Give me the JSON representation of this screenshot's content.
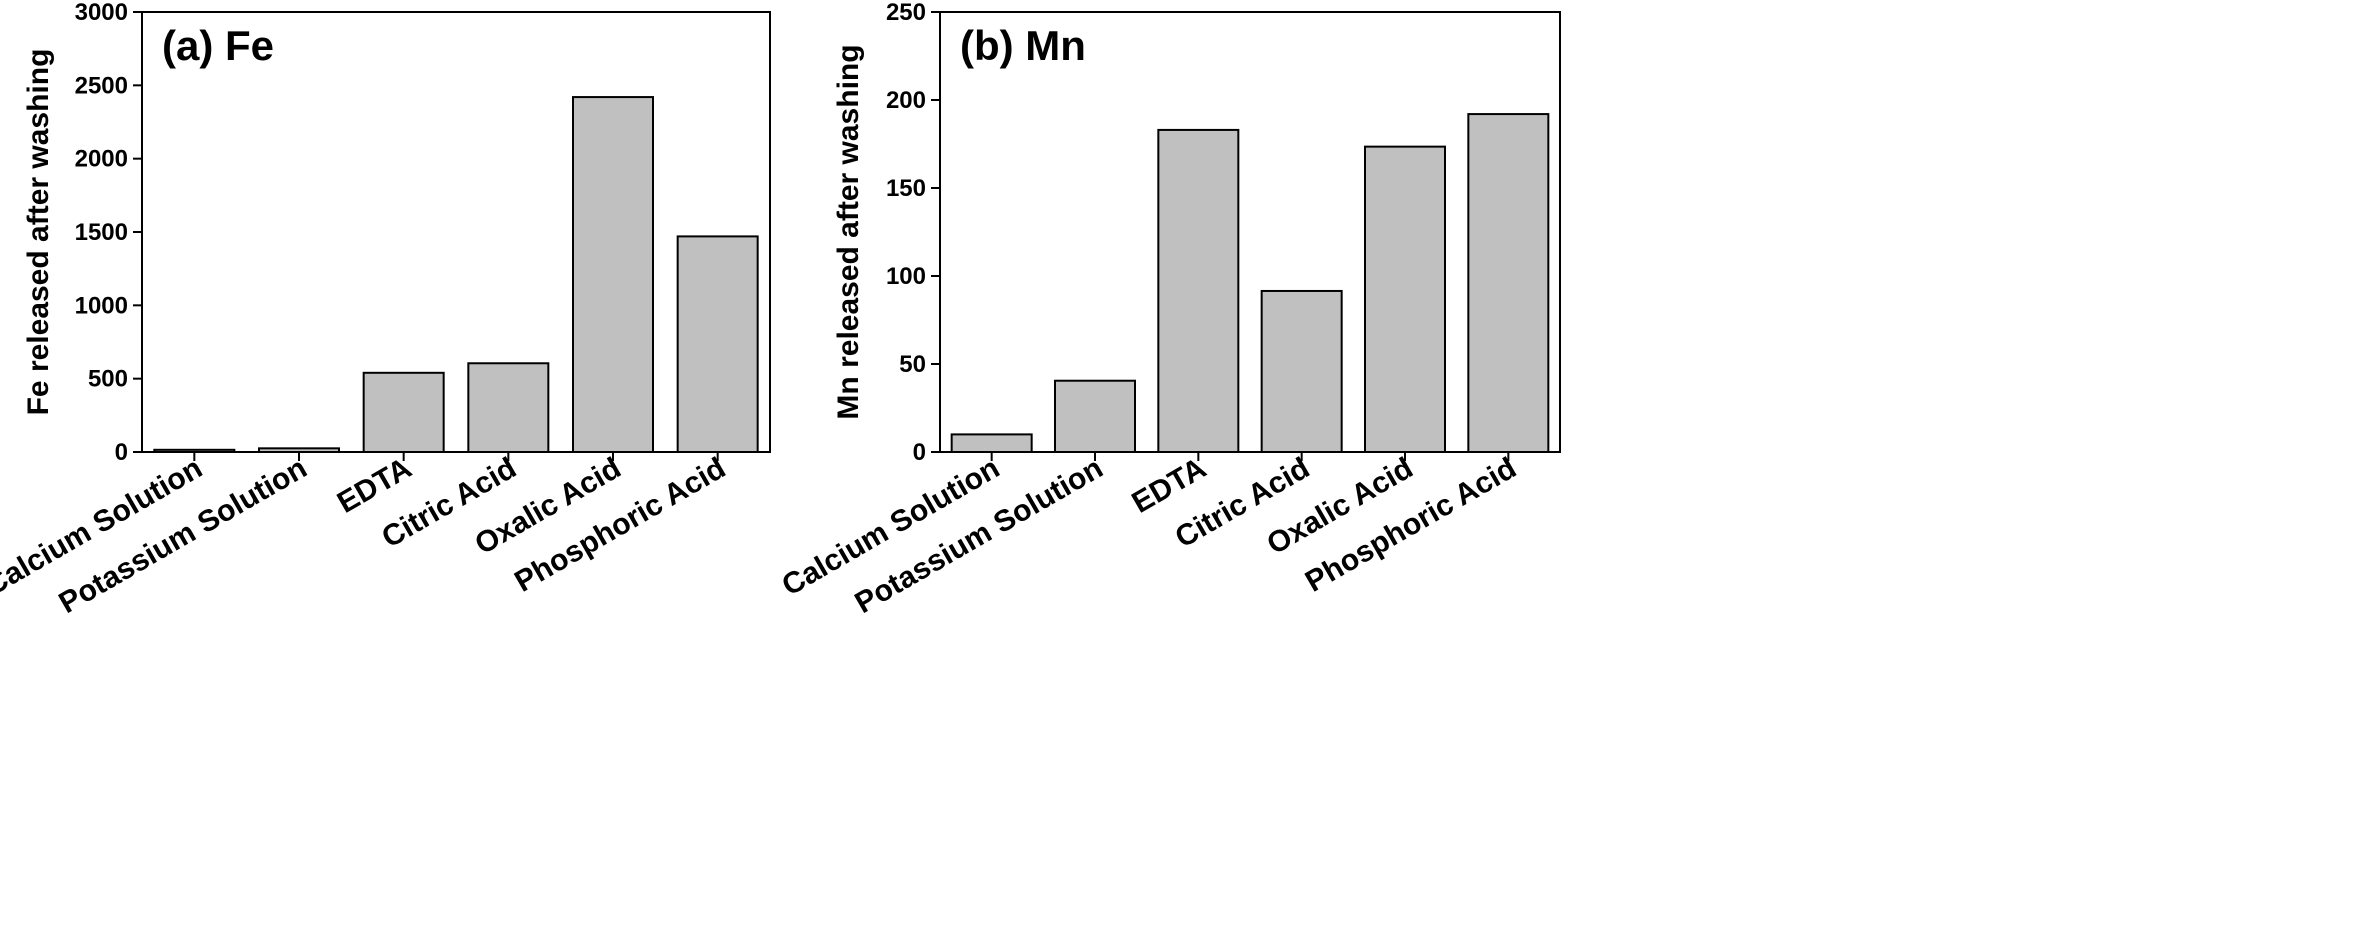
{
  "chart_data": [
    {
      "type": "bar",
      "panel_title": "(a) Fe",
      "title_position": "top-left",
      "categories": [
        "Calcium Solution",
        "Potassium Solution",
        "EDTA",
        "Citric Acid",
        "Oxalic Acid",
        "Phosphoric Acid"
      ],
      "values": [
        15,
        25,
        540,
        605,
        2420,
        1470
      ],
      "xlabel": "",
      "ylabel": "Fe released  after washing",
      "ylim": [
        0,
        3000
      ],
      "yticks": [
        0,
        500,
        1000,
        1500,
        2000,
        2500,
        3000
      ],
      "grid": false,
      "colors": {
        "bar_fill": "#c0c0c0",
        "bar_stroke": "#000000",
        "axis": "#000000"
      }
    },
    {
      "type": "bar",
      "panel_title": "(b) Mn",
      "title_position": "top-left",
      "categories": [
        "Calcium Solution",
        "Potassium Solution",
        "EDTA",
        "Citric Acid",
        "Oxalic Acid",
        "Phosphoric Acid"
      ],
      "values": [
        10,
        40.5,
        183,
        91.5,
        173.5,
        192
      ],
      "xlabel": "",
      "ylabel": "Mn released  after washing",
      "ylim": [
        0,
        250
      ],
      "yticks": [
        0,
        50,
        100,
        150,
        200,
        250
      ],
      "grid": false,
      "colors": {
        "bar_fill": "#c0c0c0",
        "bar_stroke": "#000000",
        "axis": "#000000"
      }
    }
  ]
}
